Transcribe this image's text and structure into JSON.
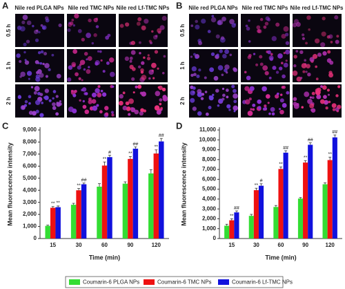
{
  "panels": [
    {
      "label": "A",
      "columns": [
        "Nile red PLGA NPs",
        "Nile red TMC NPs",
        "Nile red Lf-TMC NPs"
      ],
      "rows": [
        "0.5 h",
        "1 h",
        "2 h"
      ]
    },
    {
      "label": "B",
      "columns": [
        "Nile red PLGA NPs",
        "Nile red TMC NPs",
        "Nile red Lf-TMC NPs"
      ],
      "rows": [
        "0.5 h",
        "1 h",
        "2 h"
      ]
    }
  ],
  "chart_data": [
    {
      "type": "bar",
      "label": "C",
      "x_label": "Time (min)",
      "y_label": "Mean fluorescence intensity",
      "categories": [
        "15",
        "30",
        "60",
        "90",
        "120"
      ],
      "ylim": [
        0,
        9000
      ],
      "yticks": [
        0,
        {
          "value": 1000,
          "label": "1,000"
        },
        {
          "value": 2000,
          "label": "2,000"
        },
        {
          "value": 3000,
          "label": "3,000"
        },
        {
          "value": 4000,
          "label": "4,000"
        },
        {
          "value": 5000,
          "label": "5,000"
        },
        {
          "value": 6000,
          "label": "6,000"
        },
        {
          "value": 7000,
          "label": "7,000"
        },
        {
          "value": 8000,
          "label": "8,000"
        },
        {
          "value": 9000,
          "label": "9,000"
        }
      ],
      "series": [
        {
          "name": "Coumarin-6 PLGA NPs",
          "color": "#33dd33",
          "values": [
            1050,
            2800,
            4300,
            4550,
            5400
          ],
          "errors": [
            60,
            120,
            250,
            150,
            300
          ]
        },
        {
          "name": "Coumarin-6 TMC NPs",
          "color": "#ee1111",
          "values": [
            2550,
            4000,
            6050,
            6600,
            7050
          ],
          "errors": [
            100,
            150,
            300,
            200,
            300
          ],
          "annotations": [
            "**",
            "**",
            "**",
            "**",
            "**"
          ]
        },
        {
          "name": "Coumarin-6 Lf-TMC NPs",
          "color": "#1111dd",
          "values": [
            2600,
            4500,
            6750,
            7450,
            8050
          ],
          "errors": [
            100,
            100,
            150,
            150,
            250
          ],
          "annotations": [
            "**",
            "##",
            "#",
            "##",
            "##"
          ]
        }
      ]
    },
    {
      "type": "bar",
      "label": "D",
      "x_label": "Time (min)",
      "y_label": "Mean fluorescence intensity",
      "categories": [
        "15",
        "30",
        "60",
        "90",
        "120"
      ],
      "ylim": [
        0,
        11000
      ],
      "yticks": [
        0,
        {
          "value": 1000,
          "label": "1,000"
        },
        {
          "value": 2000,
          "label": "2,000"
        },
        {
          "value": 3000,
          "label": "3,000"
        },
        {
          "value": 4000,
          "label": "4,000"
        },
        {
          "value": 5000,
          "label": "5,000"
        },
        {
          "value": 6000,
          "label": "6,000"
        },
        {
          "value": 7000,
          "label": "7,000"
        },
        {
          "value": 8000,
          "label": "8,000"
        },
        {
          "value": 9000,
          "label": "9,000"
        },
        {
          "value": 10000,
          "label": "10,000"
        },
        {
          "value": 11000,
          "label": "11,000"
        }
      ],
      "series": [
        {
          "name": "Coumarin-6 PLGA NPs",
          "color": "#33dd33",
          "values": [
            1300,
            2300,
            3200,
            4050,
            5500
          ],
          "errors": [
            150,
            150,
            150,
            100,
            150
          ]
        },
        {
          "name": "Coumarin-6 TMC NPs",
          "color": "#ee1111",
          "values": [
            1850,
            4900,
            7050,
            7700,
            7950
          ],
          "errors": [
            150,
            200,
            200,
            200,
            300
          ],
          "annotations": [
            "**",
            "**",
            "**",
            "**",
            "**"
          ]
        },
        {
          "name": "Coumarin-6 Lf-TMC NPs",
          "color": "#1111dd",
          "values": [
            2650,
            5350,
            8700,
            9500,
            10250
          ],
          "errors": [
            150,
            200,
            200,
            200,
            250
          ],
          "annotations": [
            "##",
            "#",
            "##",
            "##",
            "##"
          ]
        }
      ]
    }
  ]
}
